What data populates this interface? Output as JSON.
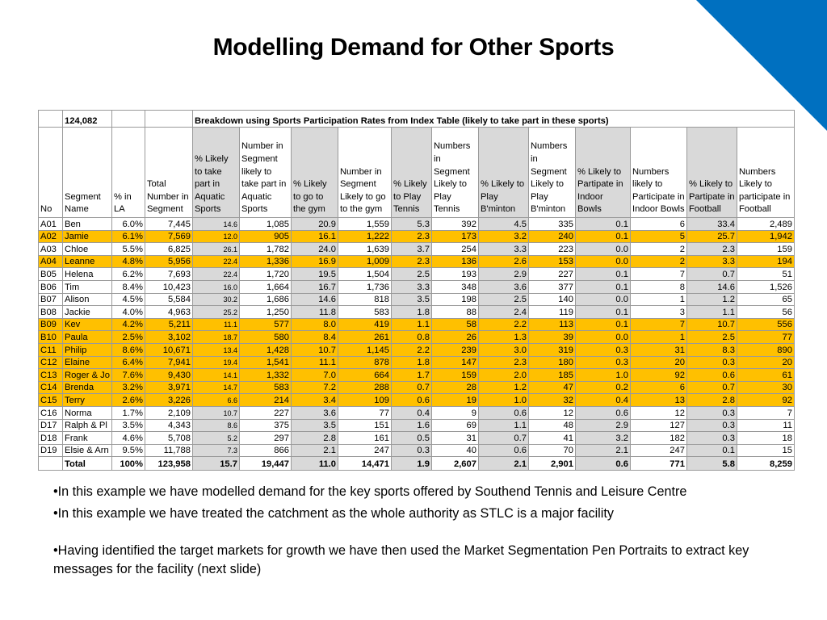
{
  "slide": {
    "title": "Modelling Demand for Other Sports",
    "accent_color": "#0070c0",
    "highlight_color": "#ffc000",
    "bullets": [
      "•In this example we have modelled demand for the key sports offered by Southend Tennis and Leisure Centre",
      "•In this example we have treated the catchment as the whole authority as STLC is a major facility",
      "•Having identified the target markets for growth we have then used the Market Segmentation Pen Portraits to extract key messages for the facility (next slide)"
    ]
  },
  "table": {
    "total_population": "124,082",
    "breakdown_title": "Breakdown using Sports Participation Rates from Index Table (likely to take part in these sports)",
    "headers": [
      "No",
      "Segment Name",
      "% in LA",
      "Total Number in Segment",
      "% Likely to take part in Aquatic Sports",
      "Number in Segment likely to take part in Aquatic Sports",
      "% Likely to go to the gym",
      "Number in Segment Likely to go to the gym",
      "% Likely to Play Tennis",
      "Numbers in Segment Likely to Play Tennis",
      "% Likely to Play B'minton",
      "Numbers in Segment Likely to Play B'minton",
      "% Likely to Partipate in Indoor Bowls",
      "Numbers likely to Participate in Indoor Bowls",
      "% Likely to Partipate in Football",
      "Numbers Likely to participate in Football"
    ],
    "rows": [
      {
        "c": [
          "A01",
          "Ben",
          "6.0%",
          "7,445",
          "14.6",
          "1,085",
          "20.9",
          "1,559",
          "5.3",
          "392",
          "4.5",
          "335",
          "0.1",
          "6",
          "33.4",
          "2,489"
        ],
        "hl": false
      },
      {
        "c": [
          "A02",
          "Jamie",
          "6.1%",
          "7,569",
          "12.0",
          "905",
          "16.1",
          "1,222",
          "2.3",
          "173",
          "3.2",
          "240",
          "0.1",
          "5",
          "25.7",
          "1,942"
        ],
        "hl": true
      },
      {
        "c": [
          "A03",
          "Chloe",
          "5.5%",
          "6,825",
          "26.1",
          "1,782",
          "24.0",
          "1,639",
          "3.7",
          "254",
          "3.3",
          "223",
          "0.0",
          "2",
          "2.3",
          "159"
        ],
        "hl": false
      },
      {
        "c": [
          "A04",
          "Leanne",
          "4.8%",
          "5,956",
          "22.4",
          "1,336",
          "16.9",
          "1,009",
          "2.3",
          "136",
          "2.6",
          "153",
          "0.0",
          "2",
          "3.3",
          "194"
        ],
        "hl": true
      },
      {
        "c": [
          "B05",
          "Helena",
          "6.2%",
          "7,693",
          "22.4",
          "1,720",
          "19.5",
          "1,504",
          "2.5",
          "193",
          "2.9",
          "227",
          "0.1",
          "7",
          "0.7",
          "51"
        ],
        "hl": false
      },
      {
        "c": [
          "B06",
          "Tim",
          "8.4%",
          "10,423",
          "16.0",
          "1,664",
          "16.7",
          "1,736",
          "3.3",
          "348",
          "3.6",
          "377",
          "0.1",
          "8",
          "14.6",
          "1,526"
        ],
        "hl": false
      },
      {
        "c": [
          "B07",
          "Alison",
          "4.5%",
          "5,584",
          "30.2",
          "1,686",
          "14.6",
          "818",
          "3.5",
          "198",
          "2.5",
          "140",
          "0.0",
          "1",
          "1.2",
          "65"
        ],
        "hl": false
      },
      {
        "c": [
          "B08",
          "Jackie",
          "4.0%",
          "4,963",
          "25.2",
          "1,250",
          "11.8",
          "583",
          "1.8",
          "88",
          "2.4",
          "119",
          "0.1",
          "3",
          "1.1",
          "56"
        ],
        "hl": false
      },
      {
        "c": [
          "B09",
          "Kev",
          "4.2%",
          "5,211",
          "11.1",
          "577",
          "8.0",
          "419",
          "1.1",
          "58",
          "2.2",
          "113",
          "0.1",
          "7",
          "10.7",
          "556"
        ],
        "hl": true
      },
      {
        "c": [
          "B10",
          "Paula",
          "2.5%",
          "3,102",
          "18.7",
          "580",
          "8.4",
          "261",
          "0.8",
          "26",
          "1.3",
          "39",
          "0.0",
          "1",
          "2.5",
          "77"
        ],
        "hl": true
      },
      {
        "c": [
          "C11",
          "Philip",
          "8.6%",
          "10,671",
          "13.4",
          "1,428",
          "10.7",
          "1,145",
          "2.2",
          "239",
          "3.0",
          "319",
          "0.3",
          "31",
          "8.3",
          "890"
        ],
        "hl": true
      },
      {
        "c": [
          "C12",
          "Elaine",
          "6.4%",
          "7,941",
          "19.4",
          "1,541",
          "11.1",
          "878",
          "1.8",
          "147",
          "2.3",
          "180",
          "0.3",
          "20",
          "0.3",
          "20"
        ],
        "hl": true
      },
      {
        "c": [
          "C13",
          "Roger & Jo",
          "7.6%",
          "9,430",
          "14.1",
          "1,332",
          "7.0",
          "664",
          "1.7",
          "159",
          "2.0",
          "185",
          "1.0",
          "92",
          "0.6",
          "61"
        ],
        "hl": true
      },
      {
        "c": [
          "C14",
          "Brenda",
          "3.2%",
          "3,971",
          "14.7",
          "583",
          "7.2",
          "288",
          "0.7",
          "28",
          "1.2",
          "47",
          "0.2",
          "6",
          "0.7",
          "30"
        ],
        "hl": true
      },
      {
        "c": [
          "C15",
          "Terry",
          "2.6%",
          "3,226",
          "6.6",
          "214",
          "3.4",
          "109",
          "0.6",
          "19",
          "1.0",
          "32",
          "0.4",
          "13",
          "2.8",
          "92"
        ],
        "hl": true
      },
      {
        "c": [
          "C16",
          "Norma",
          "1.7%",
          "2,109",
          "10.7",
          "227",
          "3.6",
          "77",
          "0.4",
          "9",
          "0.6",
          "12",
          "0.6",
          "12",
          "0.3",
          "7"
        ],
        "hl": false
      },
      {
        "c": [
          "D17",
          "Ralph & Pl",
          "3.5%",
          "4,343",
          "8.6",
          "375",
          "3.5",
          "151",
          "1.6",
          "69",
          "1.1",
          "48",
          "2.9",
          "127",
          "0.3",
          "11"
        ],
        "hl": false
      },
      {
        "c": [
          "D18",
          "Frank",
          "4.6%",
          "5,708",
          "5.2",
          "297",
          "2.8",
          "161",
          "0.5",
          "31",
          "0.7",
          "41",
          "3.2",
          "182",
          "0.3",
          "18"
        ],
        "hl": false
      },
      {
        "c": [
          "D19",
          "Elsie & Arn",
          "9.5%",
          "11,788",
          "7.3",
          "866",
          "2.1",
          "247",
          "0.3",
          "40",
          "0.6",
          "70",
          "2.1",
          "247",
          "0.1",
          "15"
        ],
        "hl": false
      }
    ],
    "total_row": [
      "",
      "Total",
      "100%",
      "123,958",
      "15.7",
      "19,447",
      "11.0",
      "14,471",
      "1.9",
      "2,607",
      "2.1",
      "2,901",
      "0.6",
      "771",
      "5.8",
      "8,259"
    ]
  }
}
